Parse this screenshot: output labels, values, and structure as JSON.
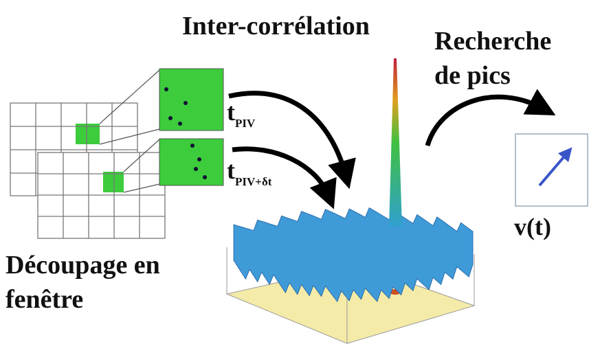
{
  "labels": {
    "correlation": "Inter-corrélation",
    "peak_search": [
      "Recherche",
      "de pics"
    ],
    "t_piv": {
      "base": "t",
      "sub": "PIV"
    },
    "t_piv_dt": {
      "base": "t",
      "sub": "PIV+δt"
    },
    "velocity": "v(t)",
    "windowing": [
      "Découpage en",
      "fenêtre"
    ]
  }
}
